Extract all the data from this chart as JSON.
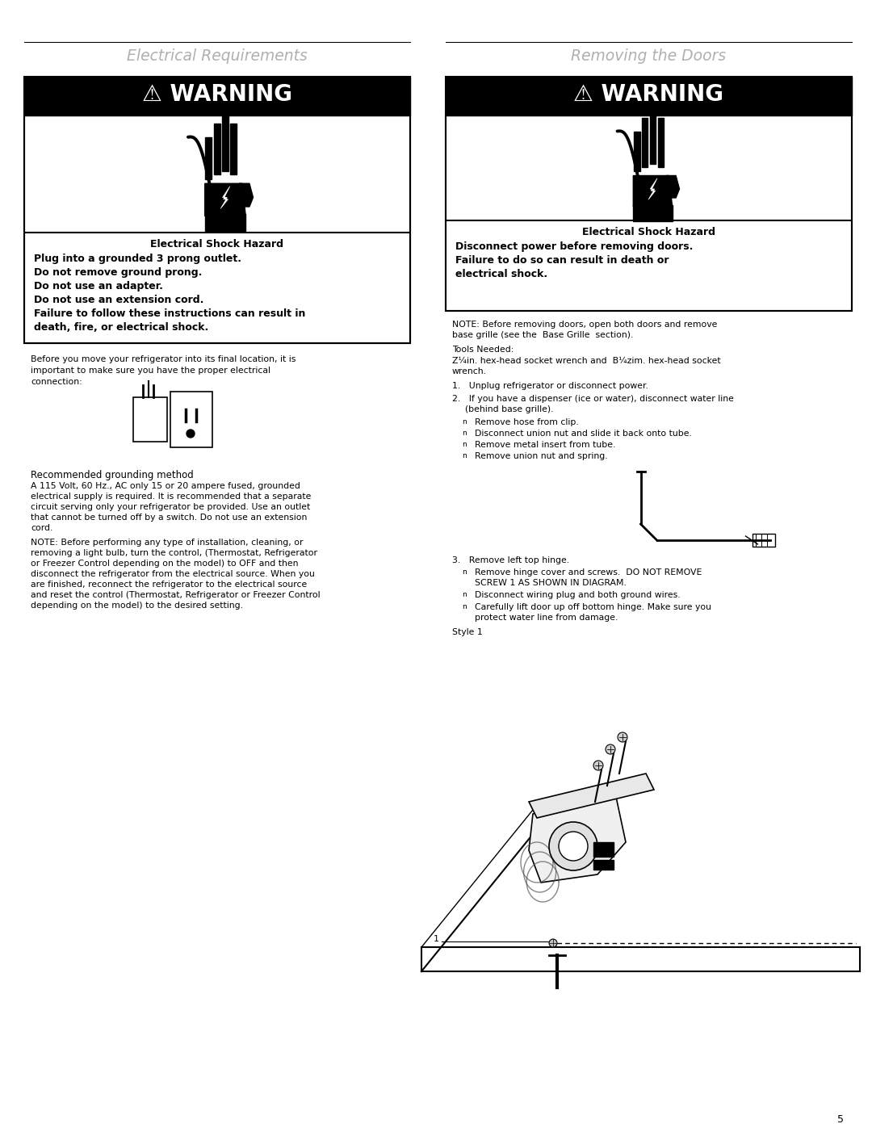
{
  "page_width": 10.8,
  "page_height": 13.97,
  "bg_color": "#ffffff",
  "page_number": "5",
  "left_section_title": "Electrical Requirements",
  "right_section_title": "Removing the Doors",
  "gray_title_color": "#b0b0b0",
  "text_color": "#000000"
}
